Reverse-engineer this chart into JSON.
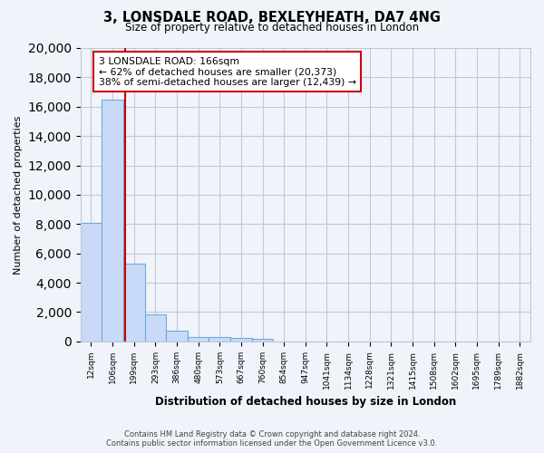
{
  "title": "3, LONSDALE ROAD, BEXLEYHEATH, DA7 4NG",
  "subtitle": "Size of property relative to detached houses in London",
  "xlabel": "Distribution of detached houses by size in London",
  "ylabel": "Number of detached properties",
  "categories": [
    "12sqm",
    "106sqm",
    "199sqm",
    "293sqm",
    "386sqm",
    "480sqm",
    "573sqm",
    "667sqm",
    "760sqm",
    "854sqm",
    "947sqm",
    "1041sqm",
    "1134sqm",
    "1228sqm",
    "1321sqm",
    "1415sqm",
    "1508sqm",
    "1602sqm",
    "1695sqm",
    "1789sqm",
    "1882sqm"
  ],
  "values": [
    8100,
    16500,
    5300,
    1850,
    750,
    320,
    270,
    220,
    160,
    0,
    0,
    0,
    0,
    0,
    0,
    0,
    0,
    0,
    0,
    0,
    0
  ],
  "bar_color": "#c9daf8",
  "bar_edge_color": "#6fa8dc",
  "property_line_bin": 1.57,
  "annotation_title": "3 LONSDALE ROAD: 166sqm",
  "annotation_line1": "← 62% of detached houses are smaller (20,373)",
  "annotation_line2": "38% of semi-detached houses are larger (12,439) →",
  "annotation_box_color": "#ffffff",
  "annotation_border_color": "#cc0000",
  "vline_color": "#cc0000",
  "grid_color": "#c0c8d8",
  "background_color": "#f0f4fa",
  "ylim": [
    0,
    20000
  ],
  "yticks": [
    0,
    2000,
    4000,
    6000,
    8000,
    10000,
    12000,
    14000,
    16000,
    18000,
    20000
  ],
  "footer_line1": "Contains HM Land Registry data © Crown copyright and database right 2024.",
  "footer_line2": "Contains public sector information licensed under the Open Government Licence v3.0."
}
